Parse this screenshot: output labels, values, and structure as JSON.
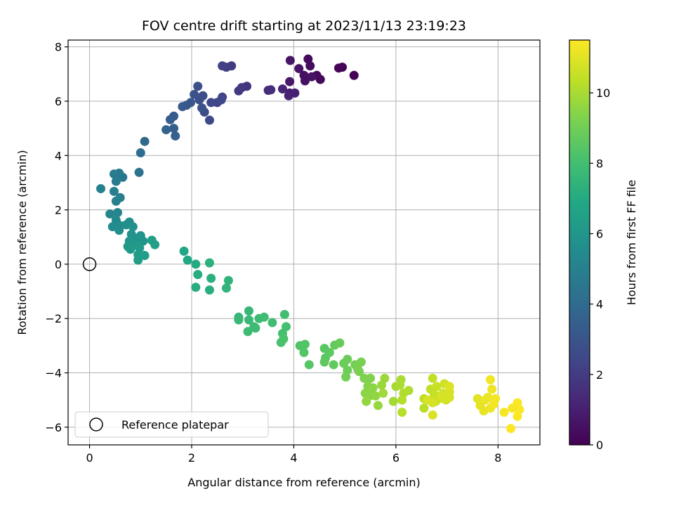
{
  "chart_data": {
    "type": "scatter",
    "title": "FOV centre drift starting at 2023/11/13 23:19:23",
    "xlabel": "Angular distance from reference (arcmin)",
    "ylabel": "Rotation from reference (arcmin)",
    "xlim": [
      -0.42,
      8.82
    ],
    "ylim": [
      -6.65,
      8.25
    ],
    "xticks": [
      "0",
      "2",
      "4",
      "6",
      "8"
    ],
    "yticks": [
      "−6",
      "−4",
      "−2",
      "0",
      "2",
      "4",
      "6",
      "8"
    ],
    "grid": true,
    "legend": {
      "placement": "lower-left",
      "entries": [
        "Reference platepar"
      ]
    },
    "reference_point": {
      "x": 0,
      "y": 0
    },
    "colorbar": {
      "label": "Hours from first FF file",
      "range": [
        0,
        11.5
      ],
      "ticks": [
        "0",
        "2",
        "4",
        "6",
        "8",
        "10"
      ],
      "colormap": "viridis"
    },
    "series": [
      {
        "points": [
          [
            5.18,
            6.95,
            0.05
          ],
          [
            4.95,
            7.25,
            0.1
          ],
          [
            4.88,
            7.22,
            0.15
          ],
          [
            4.52,
            6.8,
            0.25
          ],
          [
            4.45,
            6.95,
            0.3
          ],
          [
            4.28,
            7.55,
            0.35
          ],
          [
            4.32,
            7.3,
            0.4
          ],
          [
            4.2,
            6.95,
            0.45
          ],
          [
            4.22,
            6.75,
            0.5
          ],
          [
            4.35,
            6.9,
            0.55
          ],
          [
            4.1,
            7.2,
            0.6
          ],
          [
            3.93,
            7.5,
            0.7
          ],
          [
            3.92,
            6.72,
            0.8
          ],
          [
            3.92,
            6.3,
            0.9
          ],
          [
            4.02,
            6.3,
            1.0
          ],
          [
            3.9,
            6.2,
            1.1
          ],
          [
            3.78,
            6.45,
            1.2
          ],
          [
            3.5,
            6.4,
            1.4
          ],
          [
            3.55,
            6.42,
            1.5
          ],
          [
            3.08,
            6.55,
            1.7
          ],
          [
            2.98,
            6.5,
            1.8
          ],
          [
            2.92,
            6.38,
            1.9
          ],
          [
            2.78,
            7.3,
            2.0
          ],
          [
            2.68,
            7.25,
            2.1
          ],
          [
            2.6,
            7.3,
            2.2
          ],
          [
            2.6,
            6.15,
            2.3
          ],
          [
            2.5,
            5.95,
            2.4
          ],
          [
            2.58,
            6.05,
            2.45
          ],
          [
            2.38,
            5.95,
            2.5
          ],
          [
            2.35,
            5.3,
            2.55
          ],
          [
            2.25,
            5.6,
            2.6
          ],
          [
            2.22,
            6.2,
            2.7
          ],
          [
            2.12,
            6.55,
            2.75
          ],
          [
            2.15,
            6.05,
            2.8
          ],
          [
            2.2,
            5.75,
            2.9
          ],
          [
            2.05,
            6.25,
            3.0
          ],
          [
            1.98,
            5.95,
            3.1
          ],
          [
            1.9,
            5.85,
            3.15
          ],
          [
            1.82,
            5.8,
            3.2
          ],
          [
            1.65,
            5.45,
            3.3
          ],
          [
            1.58,
            5.32,
            3.4
          ],
          [
            1.65,
            5.0,
            3.5
          ],
          [
            1.68,
            4.72,
            3.55
          ],
          [
            1.5,
            4.95,
            3.65
          ],
          [
            1.08,
            4.52,
            3.9
          ],
          [
            1.0,
            4.1,
            4.1
          ],
          [
            0.97,
            3.38,
            4.4
          ],
          [
            0.65,
            3.2,
            4.6
          ],
          [
            0.58,
            3.35,
            4.7
          ],
          [
            0.48,
            3.32,
            4.75
          ],
          [
            0.52,
            3.05,
            4.8
          ],
          [
            0.48,
            2.68,
            4.85
          ],
          [
            0.6,
            2.45,
            4.9
          ],
          [
            0.52,
            2.32,
            4.95
          ],
          [
            0.22,
            2.78,
            5.0
          ],
          [
            0.55,
            1.9,
            5.2
          ],
          [
            0.4,
            1.85,
            5.3
          ],
          [
            0.52,
            1.62,
            5.4
          ],
          [
            0.6,
            1.42,
            5.5
          ],
          [
            0.45,
            1.38,
            5.5
          ],
          [
            0.58,
            1.25,
            5.6
          ],
          [
            0.72,
            1.45,
            5.65
          ],
          [
            0.78,
            1.55,
            5.7
          ],
          [
            0.85,
            1.38,
            5.75
          ],
          [
            0.82,
            1.1,
            5.8
          ],
          [
            0.9,
            0.95,
            5.85
          ],
          [
            1.0,
            1.05,
            5.9
          ],
          [
            1.05,
            0.85,
            5.95
          ],
          [
            0.95,
            0.72,
            6.0
          ],
          [
            0.78,
            0.85,
            6.05
          ],
          [
            0.75,
            0.65,
            6.1
          ],
          [
            0.8,
            0.55,
            6.15
          ],
          [
            0.88,
            0.7,
            6.2
          ],
          [
            0.98,
            0.6,
            6.25
          ],
          [
            0.95,
            0.35,
            6.3
          ],
          [
            1.08,
            0.32,
            6.35
          ],
          [
            0.95,
            0.15,
            6.4
          ],
          [
            1.22,
            0.88,
            6.45
          ],
          [
            1.28,
            0.72,
            6.5
          ],
          [
            1.85,
            0.48,
            6.8
          ],
          [
            1.92,
            0.15,
            6.9
          ],
          [
            2.08,
            0.0,
            7.0
          ],
          [
            2.12,
            -0.38,
            7.1
          ],
          [
            2.08,
            -0.85,
            7.15
          ],
          [
            2.35,
            -0.95,
            7.2
          ],
          [
            2.38,
            -0.52,
            7.25
          ],
          [
            2.35,
            0.05,
            7.3
          ],
          [
            2.72,
            -0.6,
            7.4
          ],
          [
            2.68,
            -0.88,
            7.45
          ],
          [
            2.92,
            -1.95,
            7.55
          ],
          [
            3.12,
            -1.72,
            7.6
          ],
          [
            2.92,
            -2.05,
            7.65
          ],
          [
            3.12,
            -2.05,
            7.7
          ],
          [
            3.25,
            -2.35,
            7.75
          ],
          [
            3.32,
            -2.0,
            7.8
          ],
          [
            3.22,
            -2.3,
            7.82
          ],
          [
            3.1,
            -2.48,
            7.85
          ],
          [
            3.42,
            -1.95,
            7.9
          ],
          [
            3.58,
            -2.15,
            7.95
          ],
          [
            3.82,
            -1.85,
            8.0
          ],
          [
            3.85,
            -2.3,
            8.05
          ],
          [
            3.78,
            -2.55,
            8.1
          ],
          [
            3.75,
            -2.88,
            8.15
          ],
          [
            3.8,
            -2.75,
            8.2
          ],
          [
            4.12,
            -3.0,
            8.3
          ],
          [
            4.22,
            -2.95,
            8.35
          ],
          [
            4.2,
            -3.25,
            8.4
          ],
          [
            4.3,
            -3.7,
            8.45
          ],
          [
            4.6,
            -3.1,
            8.5
          ],
          [
            4.62,
            -3.45,
            8.55
          ],
          [
            4.7,
            -3.25,
            8.6
          ],
          [
            4.6,
            -3.6,
            8.65
          ],
          [
            4.78,
            -3.7,
            8.7
          ],
          [
            4.8,
            -2.98,
            8.75
          ],
          [
            4.9,
            -2.9,
            8.8
          ],
          [
            4.98,
            -3.65,
            8.85
          ],
          [
            5.05,
            -3.5,
            8.9
          ],
          [
            5.05,
            -3.9,
            8.95
          ],
          [
            5.02,
            -4.15,
            9.0
          ],
          [
            5.2,
            -3.7,
            9.05
          ],
          [
            5.25,
            -3.85,
            9.1
          ],
          [
            5.32,
            -3.6,
            9.15
          ],
          [
            5.28,
            -3.95,
            9.2
          ],
          [
            5.38,
            -4.2,
            9.25
          ],
          [
            5.5,
            -4.2,
            9.3
          ],
          [
            5.45,
            -4.5,
            9.35
          ],
          [
            5.55,
            -4.55,
            9.4
          ],
          [
            5.4,
            -4.75,
            9.45
          ],
          [
            5.48,
            -4.85,
            9.5
          ],
          [
            5.52,
            -4.6,
            9.55
          ],
          [
            5.6,
            -4.85,
            9.6
          ],
          [
            5.42,
            -5.05,
            9.65
          ],
          [
            5.65,
            -5.2,
            9.7
          ],
          [
            5.72,
            -4.45,
            9.75
          ],
          [
            5.78,
            -4.2,
            9.8
          ],
          [
            5.75,
            -4.75,
            9.85
          ],
          [
            5.95,
            -5.05,
            9.9
          ],
          [
            6.0,
            -4.5,
            9.95
          ],
          [
            6.1,
            -4.25,
            10.0
          ],
          [
            6.08,
            -4.45,
            10.05
          ],
          [
            6.25,
            -4.65,
            10.1
          ],
          [
            6.15,
            -4.75,
            10.15
          ],
          [
            6.12,
            -5.0,
            10.2
          ],
          [
            6.12,
            -5.45,
            10.25
          ],
          [
            6.55,
            -5.3,
            10.3
          ],
          [
            6.55,
            -4.95,
            10.35
          ],
          [
            6.68,
            -4.6,
            10.4
          ],
          [
            6.72,
            -4.2,
            10.45
          ],
          [
            6.75,
            -4.8,
            10.5
          ],
          [
            6.8,
            -4.5,
            10.55
          ],
          [
            6.85,
            -4.95,
            10.6
          ],
          [
            6.78,
            -5.05,
            10.6
          ],
          [
            6.92,
            -4.75,
            10.65
          ],
          [
            6.95,
            -4.4,
            10.7
          ],
          [
            6.98,
            -5.0,
            10.72
          ],
          [
            7.05,
            -4.7,
            10.75
          ],
          [
            7.05,
            -4.9,
            10.78
          ],
          [
            6.9,
            -4.85,
            10.8
          ],
          [
            6.72,
            -5.1,
            10.82
          ],
          [
            6.72,
            -5.55,
            10.85
          ],
          [
            6.62,
            -5.0,
            10.85
          ],
          [
            7.05,
            -4.5,
            10.9
          ],
          [
            7.6,
            -4.95,
            11.0
          ],
          [
            7.65,
            -5.2,
            11.05
          ],
          [
            7.72,
            -5.4,
            11.1
          ],
          [
            7.8,
            -4.9,
            11.15
          ],
          [
            7.85,
            -5.3,
            11.2
          ],
          [
            7.75,
            -5.0,
            11.2
          ],
          [
            7.88,
            -4.6,
            11.25
          ],
          [
            7.85,
            -4.25,
            11.28
          ],
          [
            7.92,
            -5.15,
            11.3
          ],
          [
            7.95,
            -4.95,
            11.32
          ],
          [
            8.12,
            -5.45,
            11.35
          ],
          [
            8.28,
            -5.3,
            11.4
          ],
          [
            8.38,
            -5.1,
            11.42
          ],
          [
            8.42,
            -5.35,
            11.45
          ],
          [
            8.38,
            -5.6,
            11.48
          ],
          [
            8.25,
            -6.05,
            11.5
          ]
        ]
      }
    ]
  }
}
